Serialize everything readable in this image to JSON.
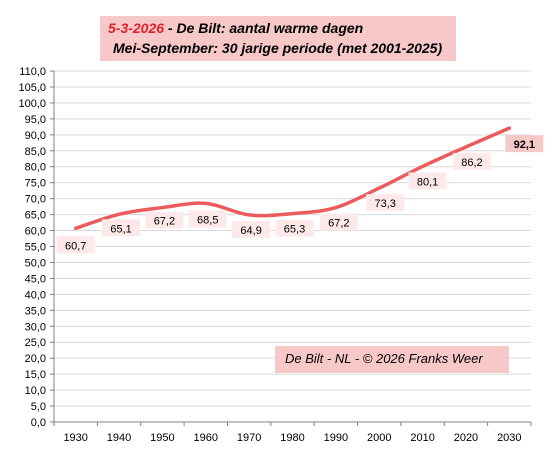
{
  "title": {
    "date": "5-3-2026",
    "line1_rest": " - De Bilt: aantal warme dagen",
    "line2": "Mei-September: 30 jarige periode (met 2001-2025)"
  },
  "credit": "De Bilt - NL  -  © 2026 Franks Weer",
  "colors": {
    "line": "#ec5b5b",
    "title_bg": "#f7c8c8",
    "label_bg": "#fde9e9",
    "label_bg_last": "#f7c8c8",
    "grid": "#d9d9d9",
    "date_red": "#e0202a"
  },
  "chart_data": {
    "type": "line",
    "x": [
      1930,
      1940,
      1950,
      1960,
      1970,
      1980,
      1990,
      2000,
      2010,
      2020,
      2030
    ],
    "xticks": [
      "1930",
      "1940",
      "1950",
      "1960",
      "1970",
      "1980",
      "1990",
      "2000",
      "2010",
      "2020",
      "2030"
    ],
    "series": [
      {
        "values": [
          60.7,
          65.1,
          67.2,
          68.5,
          64.9,
          65.3,
          67.2,
          73.3,
          80.1,
          86.2,
          92.1
        ],
        "labels": [
          "60,7",
          "65,1",
          "67,2",
          "68,5",
          "64,9",
          "65,3",
          "67,2",
          "73,3",
          "80,1",
          "86,2",
          "92,1"
        ]
      }
    ],
    "ylim": [
      0,
      110
    ],
    "ytick_step": 5,
    "yticks": [
      "0,0",
      "5,0",
      "10,0",
      "15,0",
      "20,0",
      "25,0",
      "30,0",
      "35,0",
      "40,0",
      "45,0",
      "50,0",
      "55,0",
      "60,0",
      "65,0",
      "70,0",
      "75,0",
      "80,0",
      "85,0",
      "90,0",
      "95,0",
      "100,0",
      "105,0",
      "110,0"
    ],
    "grid": true,
    "smooth": true
  }
}
